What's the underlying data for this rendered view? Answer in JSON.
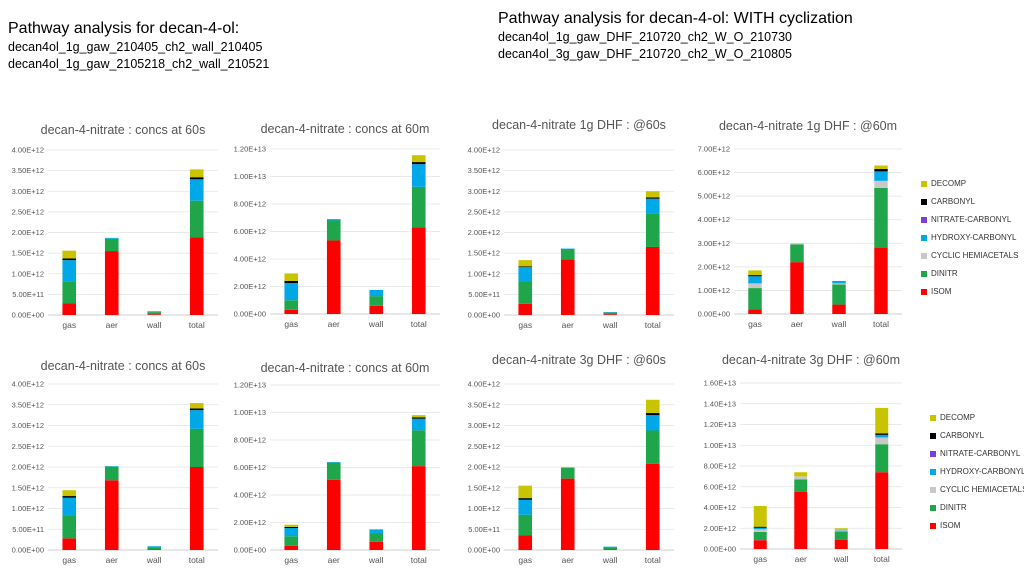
{
  "headers": {
    "left": {
      "title": "Pathway analysis for decan-4-ol:",
      "lines": [
        "decan4ol_1g_gaw_210405_ch2_wall_210405",
        "decan4ol_1g_gaw_2105218_ch2_wall_210521"
      ]
    },
    "right": {
      "title": "Pathway analysis for decan-4-ol: WITH cyclization",
      "lines": [
        "decan4ol_1g_gaw_DHF_210720_ch2_W_O_210730",
        "decan4ol_3g_gaw_DHF_210720_ch2_W_O_210805"
      ]
    }
  },
  "legend": {
    "items": [
      {
        "label": "DECOMP",
        "color": "#c8c400"
      },
      {
        "label": "CARBONYL",
        "color": "#000000"
      },
      {
        "label": "NITRATE-CARBONYL",
        "color": "#7b3fd6"
      },
      {
        "label": "HYDROXY-CARBONYL",
        "color": "#00a8e8"
      },
      {
        "label": "CYCLIC HEMIACETALS",
        "color": "#c8c8c8"
      },
      {
        "label": "DINITR",
        "color": "#1fa64a"
      },
      {
        "label": "ISOM",
        "color": "#ff0000"
      }
    ]
  },
  "chart_data": [
    {
      "type": "bar",
      "stacked": true,
      "title": "decan-4-nitrate : concs at 60s",
      "categories": [
        "gas",
        "aer",
        "wall",
        "total"
      ],
      "yticks": [
        "0.00E+00",
        "5.00E+11",
        "1.00E+12",
        "1.50E+12",
        "2.00E+12",
        "2.50E+12",
        "3.00E+12",
        "3.50E+12",
        "4.00E+12"
      ],
      "ylim": [
        0,
        4000000000000.0
      ],
      "series": [
        {
          "name": "ISOM",
          "values": [
            280000000000.0,
            1550000000000.0,
            20000000000.0,
            1880000000000.0
          ]
        },
        {
          "name": "DINITR",
          "values": [
            540000000000.0,
            300000000000.0,
            50000000000.0,
            890000000000.0
          ]
        },
        {
          "name": "CYCLIC HEMIACETALS",
          "values": [
            0,
            0,
            0,
            0
          ]
        },
        {
          "name": "HYDROXY-CARBONYL",
          "values": [
            510000000000.0,
            20000000000.0,
            20000000000.0,
            520000000000.0
          ]
        },
        {
          "name": "NITRATE-CARBONYL",
          "values": [
            0,
            0,
            0,
            0
          ]
        },
        {
          "name": "CARBONYL",
          "values": [
            40000000000.0,
            0,
            0,
            50000000000.0
          ]
        },
        {
          "name": "DECOMP",
          "values": [
            190000000000.0,
            0,
            0,
            190000000000.0
          ]
        }
      ]
    },
    {
      "type": "bar",
      "stacked": true,
      "title": "decan-4-nitrate : concs at 60m",
      "categories": [
        "gas",
        "aer",
        "wall",
        "total"
      ],
      "yticks": [
        "0.00E+00",
        "2.00E+12",
        "4.00E+12",
        "6.00E+12",
        "8.00E+12",
        "1.00E+13",
        "1.20E+13"
      ],
      "ylim": [
        0,
        12000000000000.0
      ],
      "series": [
        {
          "name": "ISOM",
          "values": [
            300000000000.0,
            5350000000000.0,
            600000000000.0,
            6300000000000.0
          ]
        },
        {
          "name": "DINITR",
          "values": [
            700000000000.0,
            1450000000000.0,
            700000000000.0,
            2950000000000.0
          ]
        },
        {
          "name": "CYCLIC HEMIACETALS",
          "values": [
            0,
            0,
            0,
            0
          ]
        },
        {
          "name": "HYDROXY-CARBONYL",
          "values": [
            1250000000000.0,
            100000000000.0,
            450000000000.0,
            1650000000000.0
          ]
        },
        {
          "name": "NITRATE-CARBONYL",
          "values": [
            0,
            0,
            0,
            0
          ]
        },
        {
          "name": "CARBONYL",
          "values": [
            150000000000.0,
            0,
            0,
            150000000000.0
          ]
        },
        {
          "name": "DECOMP",
          "values": [
            550000000000.0,
            0,
            0,
            500000000000.0
          ]
        }
      ]
    },
    {
      "type": "bar",
      "stacked": true,
      "title": "decan-4-nitrate 1g DHF : @60s",
      "categories": [
        "gas",
        "aer",
        "wall",
        "total"
      ],
      "yticks": [
        "0.00E+00",
        "5.00E+11",
        "1.00E+12",
        "1.50E+12",
        "2.00E+12",
        "2.50E+12",
        "3.00E+12",
        "3.50E+12",
        "4.00E+12"
      ],
      "ylim": [
        0,
        4000000000000.0
      ],
      "series": [
        {
          "name": "ISOM",
          "values": [
            270000000000.0,
            1350000000000.0,
            20000000000.0,
            1650000000000.0
          ]
        },
        {
          "name": "DINITR",
          "values": [
            530000000000.0,
            250000000000.0,
            40000000000.0,
            800000000000.0
          ]
        },
        {
          "name": "CYCLIC HEMIACETALS",
          "values": [
            0,
            0,
            0,
            0
          ]
        },
        {
          "name": "HYDROXY-CARBONYL",
          "values": [
            360000000000.0,
            10000000000.0,
            10000000000.0,
            370000000000.0
          ]
        },
        {
          "name": "NITRATE-CARBONYL",
          "values": [
            0,
            0,
            0,
            0
          ]
        },
        {
          "name": "CARBONYL",
          "values": [
            20000000000.0,
            0,
            0,
            30000000000.0
          ]
        },
        {
          "name": "DECOMP",
          "values": [
            150000000000.0,
            0,
            0,
            150000000000.0
          ]
        }
      ]
    },
    {
      "type": "bar",
      "stacked": true,
      "title": "decan-4-nitrate 1g DHF : @60m",
      "categories": [
        "gas",
        "aer",
        "wall",
        "total"
      ],
      "yticks": [
        "0.00E+00",
        "1.00E+12",
        "2.00E+12",
        "3.00E+12",
        "4.00E+12",
        "5.00E+12",
        "6.00E+12",
        "7.00E+12"
      ],
      "ylim": [
        0,
        7000000000000.0
      ],
      "series": [
        {
          "name": "ISOM",
          "values": [
            200000000000.0,
            2200000000000.0,
            400000000000.0,
            2800000000000.0
          ]
        },
        {
          "name": "DINITR",
          "values": [
            900000000000.0,
            750000000000.0,
            850000000000.0,
            2550000000000.0
          ]
        },
        {
          "name": "CYCLIC HEMIACETALS",
          "values": [
            200000000000.0,
            50000000000.0,
            50000000000.0,
            300000000000.0
          ]
        },
        {
          "name": "HYDROXY-CARBONYL",
          "values": [
            300000000000.0,
            0,
            100000000000.0,
            400000000000.0
          ]
        },
        {
          "name": "NITRATE-CARBONYL",
          "values": [
            0,
            0,
            0,
            0
          ]
        },
        {
          "name": "CARBONYL",
          "values": [
            50000000000.0,
            0,
            0,
            100000000000.0
          ]
        },
        {
          "name": "DECOMP",
          "values": [
            200000000000.0,
            0,
            0,
            150000000000.0
          ]
        }
      ]
    },
    {
      "type": "bar",
      "stacked": true,
      "title": "decan-4-nitrate : concs at 60s",
      "categories": [
        "gas",
        "aer",
        "wall",
        "total"
      ],
      "yticks": [
        "0.00E+00",
        "5.00E+11",
        "1.00E+12",
        "1.50E+12",
        "2.00E+12",
        "2.50E+12",
        "3.00E+12",
        "3.50E+12",
        "4.00E+12"
      ],
      "ylim": [
        0,
        4000000000000.0
      ],
      "series": [
        {
          "name": "ISOM",
          "values": [
            280000000000.0,
            1680000000000.0,
            20000000000.0,
            2000000000000.0
          ]
        },
        {
          "name": "DINITR",
          "values": [
            540000000000.0,
            330000000000.0,
            50000000000.0,
            920000000000.0
          ]
        },
        {
          "name": "CYCLIC HEMIACETALS",
          "values": [
            0,
            0,
            0,
            0
          ]
        },
        {
          "name": "HYDROXY-CARBONYL",
          "values": [
            440000000000.0,
            10000000000.0,
            20000000000.0,
            450000000000.0
          ]
        },
        {
          "name": "NITRATE-CARBONYL",
          "values": [
            0,
            0,
            0,
            0
          ]
        },
        {
          "name": "CARBONYL",
          "values": [
            40000000000.0,
            0,
            0,
            40000000000.0
          ]
        },
        {
          "name": "DECOMP",
          "values": [
            140000000000.0,
            0,
            0,
            130000000000.0
          ]
        }
      ]
    },
    {
      "type": "bar",
      "stacked": true,
      "title": "decan-4-nitrate : concs at 60m",
      "categories": [
        "gas",
        "aer",
        "wall",
        "total"
      ],
      "yticks": [
        "0.00E+00",
        "2.00E+12",
        "4.00E+12",
        "6.00E+12",
        "8.00E+12",
        "1.00E+13",
        "1.20E+13"
      ],
      "ylim": [
        0,
        12000000000000.0
      ],
      "series": [
        {
          "name": "ISOM",
          "values": [
            300000000000.0,
            5100000000000.0,
            600000000000.0,
            6100000000000.0
          ]
        },
        {
          "name": "DINITR",
          "values": [
            700000000000.0,
            1250000000000.0,
            600000000000.0,
            2600000000000.0
          ]
        },
        {
          "name": "CYCLIC HEMIACETALS",
          "values": [
            0,
            0,
            0,
            0
          ]
        },
        {
          "name": "HYDROXY-CARBONYL",
          "values": [
            600000000000.0,
            50000000000.0,
            300000000000.0,
            850000000000.0
          ]
        },
        {
          "name": "NITRATE-CARBONYL",
          "values": [
            0,
            0,
            0,
            0
          ]
        },
        {
          "name": "CARBONYL",
          "values": [
            80000000000.0,
            0,
            0,
            100000000000.0
          ]
        },
        {
          "name": "DECOMP",
          "values": [
            160000000000.0,
            0,
            0,
            160000000000.0
          ]
        }
      ]
    },
    {
      "type": "bar",
      "stacked": true,
      "title": "decan-4-nitrate 3g DHF : @60s",
      "categories": [
        "gas",
        "aer",
        "wall",
        "total"
      ],
      "yticks": [
        "0.00E+00",
        "5.00E+11",
        "1.00E+12",
        "1.50E+12",
        "2.00E+12",
        "2.50E+12",
        "3.00E+12",
        "3.50E+12",
        "4.00E+12"
      ],
      "ylim": [
        0,
        4000000000000.0
      ],
      "series": [
        {
          "name": "ISOM",
          "values": [
            350000000000.0,
            1720000000000.0,
            20000000000.0,
            2080000000000.0
          ]
        },
        {
          "name": "DINITR",
          "values": [
            500000000000.0,
            260000000000.0,
            50000000000.0,
            800000000000.0
          ]
        },
        {
          "name": "CYCLIC HEMIACETALS",
          "values": [
            0,
            0,
            0,
            0
          ]
        },
        {
          "name": "HYDROXY-CARBONYL",
          "values": [
            360000000000.0,
            10000000000.0,
            10000000000.0,
            370000000000.0
          ]
        },
        {
          "name": "NITRATE-CARBONYL",
          "values": [
            0,
            0,
            0,
            0
          ]
        },
        {
          "name": "CARBONYL",
          "values": [
            40000000000.0,
            0,
            0,
            50000000000.0
          ]
        },
        {
          "name": "DECOMP",
          "values": [
            300000000000.0,
            0,
            0,
            320000000000.0
          ]
        }
      ]
    },
    {
      "type": "bar",
      "stacked": true,
      "title": "decan-4-nitrate 3g DHF : @60m",
      "categories": [
        "gas",
        "aer",
        "wall",
        "total"
      ],
      "yticks": [
        "0.00E+00",
        "2.00E+12",
        "4.00E+12",
        "6.00E+12",
        "8.00E+12",
        "1.00E+13",
        "1.20E+13",
        "1.40E+13",
        "1.60E+13"
      ],
      "ylim": [
        0,
        16000000000000.0
      ],
      "series": [
        {
          "name": "ISOM",
          "values": [
            850000000000.0,
            5500000000000.0,
            900000000000.0,
            7400000000000.0
          ]
        },
        {
          "name": "DINITR",
          "values": [
            800000000000.0,
            1200000000000.0,
            800000000000.0,
            2700000000000.0
          ]
        },
        {
          "name": "CYCLIC HEMIACETALS",
          "values": [
            250000000000.0,
            300000000000.0,
            100000000000.0,
            650000000000.0
          ]
        },
        {
          "name": "HYDROXY-CARBONYL",
          "values": [
            150000000000.0,
            0,
            50000000000.0,
            250000000000.0
          ]
        },
        {
          "name": "NITRATE-CARBONYL",
          "values": [
            0,
            0,
            0,
            0
          ]
        },
        {
          "name": "CARBONYL",
          "values": [
            100000000000.0,
            0,
            0,
            150000000000.0
          ]
        },
        {
          "name": "DECOMP",
          "values": [
            2000000000000.0,
            400000000000.0,
            150000000000.0,
            2450000000000.0
          ]
        }
      ]
    }
  ]
}
